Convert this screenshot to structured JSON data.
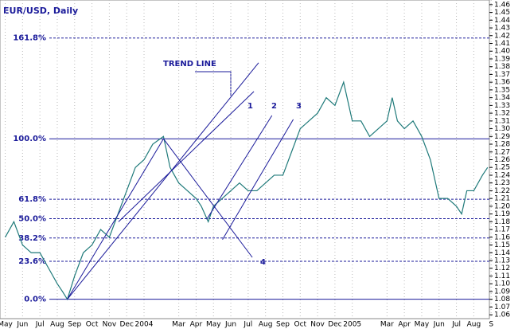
{
  "chart_data": {
    "type": "line",
    "title": "EUR/USD, Daily",
    "x": [
      0,
      0.5,
      1,
      1.5,
      2,
      2.5,
      3,
      3.3,
      3.58,
      4,
      4.5,
      5,
      5.5,
      6,
      6.5,
      7,
      7.5,
      8,
      8.5,
      9.12,
      9.5,
      10,
      10.5,
      11,
      11.3,
      11.7,
      12,
      12.5,
      13,
      13.5,
      14,
      14.5,
      15,
      15.5,
      16,
      16.5,
      17,
      17.5,
      18,
      18.5,
      19,
      19.5,
      19.8,
      20,
      20.5,
      21,
      21.5,
      22,
      22.3,
      22.6,
      23,
      23.5,
      24,
      24.5,
      25,
      25.5,
      26,
      26.3,
      26.6,
      27,
      27.5,
      27.8
    ],
    "series": [
      {
        "name": "EUR/USD",
        "color": "#1f7a7a",
        "values": [
          1.16,
          1.18,
          1.15,
          1.14,
          1.14,
          1.12,
          1.1,
          1.09,
          1.08,
          1.11,
          1.14,
          1.15,
          1.17,
          1.16,
          1.19,
          1.22,
          1.25,
          1.26,
          1.28,
          1.29,
          1.25,
          1.23,
          1.22,
          1.21,
          1.2,
          1.18,
          1.2,
          1.21,
          1.22,
          1.23,
          1.22,
          1.22,
          1.23,
          1.24,
          1.24,
          1.27,
          1.3,
          1.31,
          1.32,
          1.34,
          1.33,
          1.36,
          1.33,
          1.31,
          1.31,
          1.29,
          1.3,
          1.31,
          1.34,
          1.31,
          1.3,
          1.31,
          1.29,
          1.26,
          1.21,
          1.21,
          1.2,
          1.19,
          1.22,
          1.22,
          1.24,
          1.25
        ]
      }
    ],
    "xlim": [
      -0.3,
      27.9
    ],
    "xticks": [
      {
        "value": 0,
        "label": "May"
      },
      {
        "value": 1,
        "label": "Jun"
      },
      {
        "value": 2,
        "label": "Jul"
      },
      {
        "value": 3,
        "label": "Aug"
      },
      {
        "value": 4,
        "label": "Sep"
      },
      {
        "value": 5,
        "label": "Oct"
      },
      {
        "value": 6,
        "label": "Nov"
      },
      {
        "value": 7,
        "label": "Dec"
      },
      {
        "value": 8,
        "label": "2004"
      },
      {
        "value": 10,
        "label": "Mar"
      },
      {
        "value": 11,
        "label": "Apr"
      },
      {
        "value": 12,
        "label": "May"
      },
      {
        "value": 13,
        "label": "Jun"
      },
      {
        "value": 14,
        "label": "Jul"
      },
      {
        "value": 15,
        "label": "Aug"
      },
      {
        "value": 16,
        "label": "Sep"
      },
      {
        "value": 17,
        "label": "Oct"
      },
      {
        "value": 18,
        "label": "Nov"
      },
      {
        "value": 19,
        "label": "Dec"
      },
      {
        "value": 20,
        "label": "2005"
      },
      {
        "value": 22,
        "label": "Mar"
      },
      {
        "value": 23,
        "label": "Apr"
      },
      {
        "value": 24,
        "label": "May"
      },
      {
        "value": 25,
        "label": "Jun"
      },
      {
        "value": 26,
        "label": "Jul"
      },
      {
        "value": 27,
        "label": "Aug"
      },
      {
        "value": 28,
        "label": "S"
      }
    ],
    "ylim": [
      1.055,
      1.466
    ],
    "yticks": [
      1.06,
      1.07,
      1.08,
      1.09,
      {
        "value": 1.1,
        "label": "1.10"
      },
      1.11,
      1.12,
      1.13,
      1.14,
      1.15,
      1.16,
      1.17,
      1.18,
      1.19,
      {
        "value": 1.2,
        "label": "1.20"
      },
      1.21,
      1.22,
      1.23,
      1.24,
      1.25,
      1.26,
      1.27,
      1.28,
      1.29,
      {
        "value": 1.3,
        "label": "1.30"
      },
      1.31,
      1.32,
      1.33,
      1.34,
      1.35,
      1.36,
      1.37,
      1.38,
      1.39,
      {
        "value": 1.4,
        "label": "1.40"
      },
      1.41,
      1.42,
      1.43,
      1.44,
      1.45,
      1.46
    ],
    "grid": true,
    "fib_levels": [
      {
        "label": "0.0%",
        "value": 1.08,
        "style": "solid"
      },
      {
        "label": "23.6%",
        "value": 1.129,
        "style": "dashed"
      },
      {
        "label": "38.2%",
        "value": 1.159,
        "style": "dashed"
      },
      {
        "label": "50.0%",
        "value": 1.184,
        "style": "dashed"
      },
      {
        "label": "61.8%",
        "value": 1.209,
        "style": "dashed"
      },
      {
        "label": "100.0%",
        "value": 1.287,
        "style": "solid"
      },
      {
        "label": "161.8%",
        "value": 1.417,
        "style": "dashed"
      }
    ],
    "lines": [
      {
        "x": [
          3.58,
          14.6
        ],
        "y": [
          1.08,
          1.385
        ]
      },
      {
        "x": [
          3.58,
          9.12
        ],
        "y": [
          1.08,
          1.287
        ]
      },
      {
        "x": [
          6.53,
          14.33
        ],
        "y": [
          1.18,
          1.348
        ]
      },
      {
        "x": [
          11.61,
          15.37
        ],
        "y": [
          1.183,
          1.317
        ]
      },
      {
        "x": [
          12.52,
          16.6
        ],
        "y": [
          1.157,
          1.312
        ]
      },
      {
        "x": [
          9.12,
          14.24
        ],
        "y": [
          1.287,
          1.134
        ]
      }
    ],
    "annotations": [
      "TREND LINE",
      "1",
      "2",
      "3",
      "4"
    ]
  }
}
